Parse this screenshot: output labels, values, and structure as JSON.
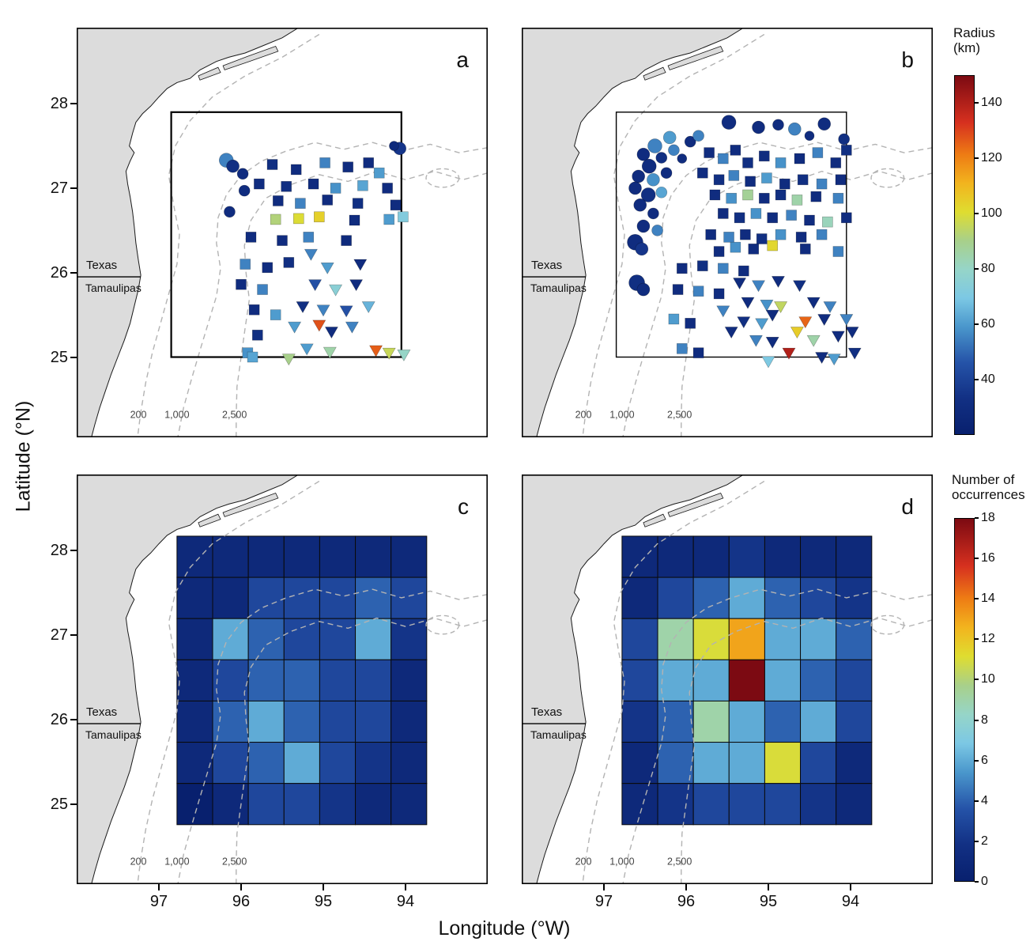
{
  "figure": {
    "xlabel": "Longitude (°W)",
    "ylabel": "Latitude (°N)",
    "x_tick_values": [
      97,
      96,
      95,
      94
    ],
    "y_tick_values": [
      28,
      27,
      26,
      25
    ]
  },
  "map": {
    "region_labels": {
      "texas": "Texas",
      "tamaulipas": "Tamaulipas"
    },
    "contour_labels": [
      "200",
      "1,000",
      "2,500"
    ]
  },
  "colors": {
    "land": "#dcdcdc",
    "coast_outline": "#1a1a1a",
    "contour_dash": "#b3b3b3",
    "panel_frame": "#000000",
    "colormap_stops": [
      [
        0.0,
        "#08206e"
      ],
      [
        0.1,
        "#123084"
      ],
      [
        0.2,
        "#2553a8"
      ],
      [
        0.3,
        "#4a97cc"
      ],
      [
        0.38,
        "#7cc8e4"
      ],
      [
        0.46,
        "#96d5c8"
      ],
      [
        0.54,
        "#a8d08a"
      ],
      [
        0.62,
        "#dfdd30"
      ],
      [
        0.7,
        "#f2b41e"
      ],
      [
        0.78,
        "#ee7c14"
      ],
      [
        0.87,
        "#d6301f"
      ],
      [
        1.0,
        "#7c0a12"
      ]
    ]
  },
  "colorbars": [
    {
      "id": "radius",
      "title_lines": [
        "Radius",
        "(km)"
      ],
      "min": 20,
      "max": 150,
      "ticks": [
        40,
        60,
        80,
        100,
        120,
        140
      ]
    },
    {
      "id": "occurrences",
      "title_lines": [
        "Number of",
        "occurrences"
      ],
      "min": 0,
      "max": 18,
      "ticks": [
        0,
        2,
        4,
        6,
        8,
        10,
        12,
        14,
        16,
        18
      ]
    }
  ],
  "chart_data": [
    {
      "panel": "a",
      "label": "a",
      "type": "scatter",
      "colorbar": "radius",
      "box": {
        "lon_w": 96.85,
        "lat_n": 27.9,
        "lon_e": 94.05,
        "lat_s": 25.0,
        "stroke_width": 2.2
      },
      "points": {
        "circle": [
          [
            96.18,
            27.33,
            55,
            9
          ],
          [
            96.1,
            27.26,
            32,
            8
          ],
          [
            95.98,
            27.17,
            30,
            7
          ],
          [
            96.14,
            26.72,
            30,
            7
          ],
          [
            95.96,
            26.97,
            30,
            7
          ],
          [
            94.07,
            27.47,
            35,
            8
          ],
          [
            94.14,
            27.5,
            28,
            6
          ]
        ],
        "square": [
          [
            95.62,
            27.28,
            32
          ],
          [
            95.33,
            27.22,
            30
          ],
          [
            94.98,
            27.3,
            55
          ],
          [
            94.7,
            27.25,
            30
          ],
          [
            94.45,
            27.3,
            30
          ],
          [
            94.32,
            27.18,
            60
          ],
          [
            95.78,
            27.05,
            30
          ],
          [
            95.45,
            27.02,
            32
          ],
          [
            95.12,
            27.05,
            30
          ],
          [
            94.85,
            27.0,
            58
          ],
          [
            94.52,
            27.03,
            62
          ],
          [
            94.22,
            27.0,
            30
          ],
          [
            95.55,
            26.85,
            30
          ],
          [
            95.28,
            26.82,
            55
          ],
          [
            94.95,
            26.86,
            30
          ],
          [
            94.58,
            26.82,
            32
          ],
          [
            94.12,
            26.8,
            30
          ],
          [
            95.58,
            26.63,
            92
          ],
          [
            95.3,
            26.64,
            100
          ],
          [
            95.05,
            26.66,
            104
          ],
          [
            94.62,
            26.62,
            30
          ],
          [
            94.2,
            26.63,
            60
          ],
          [
            94.03,
            26.66,
            72
          ],
          [
            95.88,
            26.42,
            30
          ],
          [
            95.5,
            26.38,
            30
          ],
          [
            95.18,
            26.42,
            55
          ],
          [
            94.72,
            26.38,
            28
          ],
          [
            95.95,
            26.1,
            55
          ],
          [
            95.68,
            26.06,
            30
          ],
          [
            95.42,
            26.12,
            32
          ],
          [
            96.0,
            25.86,
            30
          ],
          [
            95.74,
            25.8,
            55
          ],
          [
            95.84,
            25.56,
            30
          ],
          [
            95.58,
            25.5,
            60
          ],
          [
            95.8,
            25.26,
            32
          ],
          [
            95.92,
            25.05,
            58
          ],
          [
            95.86,
            25.0,
            62
          ]
        ],
        "triangle": [
          [
            95.15,
            26.22,
            55
          ],
          [
            94.95,
            26.06,
            60
          ],
          [
            94.55,
            26.1,
            30
          ],
          [
            95.1,
            25.86,
            45
          ],
          [
            94.85,
            25.8,
            75
          ],
          [
            94.6,
            25.86,
            30
          ],
          [
            95.25,
            25.6,
            32
          ],
          [
            95.0,
            25.56,
            55
          ],
          [
            94.72,
            25.55,
            45
          ],
          [
            94.45,
            25.6,
            65
          ],
          [
            95.35,
            25.36,
            60
          ],
          [
            95.05,
            25.38,
            128
          ],
          [
            94.9,
            25.3,
            30
          ],
          [
            94.65,
            25.36,
            55
          ],
          [
            95.2,
            25.1,
            60
          ],
          [
            94.92,
            25.06,
            85
          ],
          [
            94.36,
            25.08,
            126
          ],
          [
            94.2,
            25.05,
            96
          ],
          [
            94.02,
            25.03,
            80
          ],
          [
            95.42,
            24.98,
            90
          ]
        ]
      }
    },
    {
      "panel": "b",
      "label": "b",
      "type": "scatter",
      "colorbar": "radius",
      "box": {
        "lon_w": 96.85,
        "lat_n": 27.9,
        "lon_e": 94.05,
        "lat_s": 25.0,
        "stroke_width": 1.4
      },
      "points": {
        "circle": [
          [
            95.48,
            27.78,
            30,
            9
          ],
          [
            95.12,
            27.72,
            30,
            8
          ],
          [
            94.68,
            27.7,
            55,
            8
          ],
          [
            94.32,
            27.76,
            30,
            8
          ],
          [
            94.08,
            27.58,
            32,
            7
          ],
          [
            96.2,
            27.6,
            60,
            8
          ],
          [
            96.38,
            27.5,
            55,
            9
          ],
          [
            96.52,
            27.4,
            30,
            8
          ],
          [
            96.3,
            27.36,
            32,
            7
          ],
          [
            96.45,
            27.26,
            30,
            9
          ],
          [
            96.58,
            27.14,
            30,
            8
          ],
          [
            96.4,
            27.1,
            58,
            8
          ],
          [
            96.24,
            27.18,
            30,
            7
          ],
          [
            96.62,
            27.0,
            30,
            8
          ],
          [
            96.46,
            26.92,
            32,
            9
          ],
          [
            96.3,
            26.95,
            62,
            7
          ],
          [
            96.56,
            26.8,
            30,
            8
          ],
          [
            96.4,
            26.7,
            30,
            7
          ],
          [
            96.52,
            26.55,
            30,
            8
          ],
          [
            96.35,
            26.5,
            55,
            7
          ],
          [
            96.62,
            26.36,
            30,
            10
          ],
          [
            96.54,
            26.28,
            35,
            8
          ],
          [
            96.15,
            27.45,
            55,
            7
          ],
          [
            95.95,
            27.55,
            30,
            7
          ],
          [
            96.05,
            27.35,
            30,
            6
          ],
          [
            96.6,
            25.88,
            32,
            10
          ],
          [
            96.52,
            25.8,
            30,
            8
          ],
          [
            95.85,
            27.62,
            55,
            7
          ],
          [
            94.88,
            27.75,
            30,
            7
          ],
          [
            94.5,
            27.62,
            30,
            6
          ]
        ],
        "square": [
          [
            95.72,
            27.42,
            30
          ],
          [
            95.55,
            27.35,
            55
          ],
          [
            95.4,
            27.45,
            30
          ],
          [
            95.25,
            27.3,
            32
          ],
          [
            95.05,
            27.38,
            30
          ],
          [
            94.85,
            27.3,
            58
          ],
          [
            94.62,
            27.35,
            30
          ],
          [
            94.4,
            27.42,
            55
          ],
          [
            94.18,
            27.3,
            30
          ],
          [
            94.05,
            27.45,
            32
          ],
          [
            95.8,
            27.18,
            30
          ],
          [
            95.6,
            27.1,
            32
          ],
          [
            95.42,
            27.15,
            55
          ],
          [
            95.22,
            27.08,
            30
          ],
          [
            95.02,
            27.12,
            60
          ],
          [
            94.8,
            27.05,
            30
          ],
          [
            94.58,
            27.1,
            32
          ],
          [
            94.35,
            27.05,
            55
          ],
          [
            94.12,
            27.1,
            30
          ],
          [
            95.65,
            26.92,
            30
          ],
          [
            95.45,
            26.88,
            58
          ],
          [
            95.25,
            26.92,
            88
          ],
          [
            95.05,
            26.88,
            30
          ],
          [
            94.85,
            26.92,
            32
          ],
          [
            94.65,
            26.86,
            85
          ],
          [
            94.42,
            26.9,
            30
          ],
          [
            94.15,
            26.88,
            55
          ],
          [
            95.55,
            26.7,
            30
          ],
          [
            95.35,
            26.65,
            32
          ],
          [
            95.15,
            26.7,
            58
          ],
          [
            94.95,
            26.65,
            30
          ],
          [
            94.72,
            26.68,
            55
          ],
          [
            94.5,
            26.62,
            30
          ],
          [
            94.28,
            26.6,
            82
          ],
          [
            94.05,
            26.65,
            30
          ],
          [
            95.7,
            26.45,
            30
          ],
          [
            95.48,
            26.42,
            55
          ],
          [
            95.28,
            26.45,
            30
          ],
          [
            95.08,
            26.4,
            32
          ],
          [
            94.85,
            26.45,
            58
          ],
          [
            94.6,
            26.42,
            30
          ],
          [
            94.35,
            26.45,
            55
          ],
          [
            95.6,
            26.25,
            30
          ],
          [
            95.4,
            26.3,
            58
          ],
          [
            95.18,
            26.28,
            30
          ],
          [
            94.95,
            26.32,
            102
          ],
          [
            94.55,
            26.28,
            30
          ],
          [
            94.15,
            26.25,
            55
          ],
          [
            96.05,
            26.05,
            30
          ],
          [
            95.8,
            26.08,
            32
          ],
          [
            95.55,
            26.05,
            55
          ],
          [
            95.3,
            26.02,
            30
          ],
          [
            96.1,
            25.8,
            30
          ],
          [
            95.85,
            25.78,
            55
          ],
          [
            95.6,
            25.75,
            30
          ],
          [
            96.15,
            25.45,
            60
          ],
          [
            95.95,
            25.4,
            30
          ],
          [
            96.05,
            25.1,
            55
          ],
          [
            95.85,
            25.05,
            30
          ]
        ],
        "triangle": [
          [
            95.35,
            25.88,
            30
          ],
          [
            95.12,
            25.85,
            55
          ],
          [
            94.88,
            25.9,
            30
          ],
          [
            94.85,
            25.6,
            95
          ],
          [
            94.62,
            25.85,
            32
          ],
          [
            95.25,
            25.65,
            30
          ],
          [
            95.02,
            25.62,
            58
          ],
          [
            94.45,
            25.65,
            30
          ],
          [
            94.25,
            25.6,
            55
          ],
          [
            95.3,
            25.42,
            32
          ],
          [
            95.08,
            25.4,
            60
          ],
          [
            94.55,
            25.42,
            125
          ],
          [
            94.32,
            25.45,
            30
          ],
          [
            95.15,
            25.2,
            55
          ],
          [
            94.95,
            25.18,
            30
          ],
          [
            94.65,
            25.3,
            105
          ],
          [
            94.45,
            25.2,
            85
          ],
          [
            94.15,
            25.25,
            30
          ],
          [
            95.0,
            24.95,
            70
          ],
          [
            94.75,
            25.05,
            140
          ],
          [
            94.35,
            25.0,
            30
          ],
          [
            93.95,
            25.05,
            32
          ],
          [
            94.95,
            25.5,
            30
          ],
          [
            95.45,
            25.3,
            30
          ],
          [
            95.55,
            25.55,
            55
          ],
          [
            94.05,
            25.45,
            55
          ],
          [
            93.98,
            25.3,
            30
          ],
          [
            94.2,
            24.98,
            60
          ]
        ]
      }
    },
    {
      "panel": "c",
      "label": "c",
      "type": "heatmap",
      "colorbar": "occurrences",
      "grid": {
        "lon_west": 96.78,
        "lat_north": 28.17,
        "d_lon": 0.434,
        "d_lat": 0.488,
        "rows": 7,
        "cols": 7
      },
      "values": [
        [
          1,
          1,
          1,
          1,
          1,
          1,
          1
        ],
        [
          1,
          1,
          3,
          3,
          3,
          4,
          3
        ],
        [
          1,
          6,
          4,
          3,
          3,
          6,
          2
        ],
        [
          1,
          3,
          4,
          4,
          3,
          3,
          1
        ],
        [
          1,
          4,
          6,
          4,
          3,
          3,
          1
        ],
        [
          1,
          3,
          4,
          6,
          3,
          2,
          1
        ],
        [
          0,
          1,
          3,
          3,
          2,
          1,
          1
        ]
      ]
    },
    {
      "panel": "d",
      "label": "d",
      "type": "heatmap",
      "colorbar": "occurrences",
      "grid": {
        "lon_west": 96.78,
        "lat_north": 28.17,
        "d_lon": 0.434,
        "d_lat": 0.488,
        "rows": 7,
        "cols": 7
      },
      "values": [
        [
          1,
          1,
          1,
          2,
          1,
          1,
          1
        ],
        [
          1,
          3,
          4,
          6,
          4,
          3,
          2
        ],
        [
          3,
          9,
          11,
          13,
          6,
          6,
          4
        ],
        [
          3,
          6,
          6,
          18,
          6,
          4,
          3
        ],
        [
          2,
          4,
          9,
          6,
          4,
          6,
          3
        ],
        [
          1,
          4,
          6,
          6,
          11,
          3,
          1
        ],
        [
          1,
          2,
          3,
          3,
          3,
          2,
          1
        ]
      ]
    }
  ]
}
